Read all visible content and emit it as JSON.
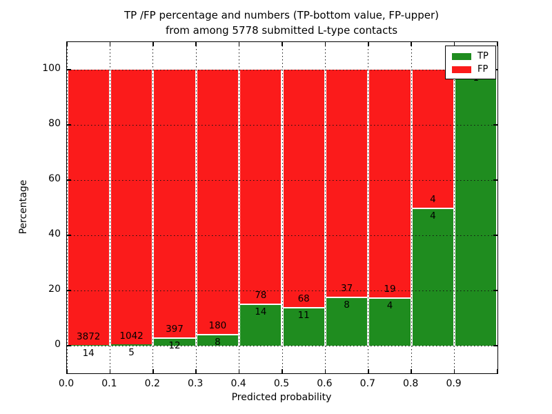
{
  "title": {
    "line1": "TP /FP percentage and numbers (TP-bottom value, FP-upper)",
    "line2": "from among 5778 submitted L-type contacts"
  },
  "axes": {
    "xlabel": "Predicted probability",
    "ylabel": "Percentage"
  },
  "legend": {
    "position": "upper right",
    "items": [
      {
        "label": "TP",
        "color": "#1f8c1f"
      },
      {
        "label": "FP",
        "color": "#fb1b1b"
      }
    ]
  },
  "colors": {
    "tp": "#1f8c1f",
    "fp": "#fb1b1b",
    "grid": "#111111",
    "background": "#ffffff",
    "bar_edge": "#ffffff"
  },
  "chart_data": {
    "type": "bar",
    "stacked": true,
    "normalized": "each bin stacked to 100%",
    "title": "TP /FP percentage and numbers (TP-bottom value, FP-upper) from among 5778 submitted L-type contacts",
    "xlabel": "Predicted probability",
    "ylabel": "Percentage",
    "xlim": [
      0.0,
      1.0
    ],
    "ylim": [
      -10,
      110
    ],
    "x_tick_labels": [
      "0.0",
      "0.1",
      "0.2",
      "0.3",
      "0.4",
      "0.5",
      "0.6",
      "0.7",
      "0.8",
      "0.9"
    ],
    "y_tick_values": [
      0,
      20,
      40,
      60,
      80,
      100
    ],
    "y_tick_labels": [
      "0",
      "20",
      "40",
      "60",
      "80",
      "100"
    ],
    "grid": "dotted, both axes, drawn over bars",
    "legend_entries": [
      "TP",
      "FP"
    ],
    "bins": [
      {
        "range": "0.0-0.1",
        "tp": 14,
        "fp": 3872
      },
      {
        "range": "0.1-0.2",
        "tp": 5,
        "fp": 1042
      },
      {
        "range": "0.2-0.3",
        "tp": 12,
        "fp": 397
      },
      {
        "range": "0.3-0.4",
        "tp": 8,
        "fp": 180
      },
      {
        "range": "0.4-0.5",
        "tp": 14,
        "fp": 78
      },
      {
        "range": "0.5-0.6",
        "tp": 11,
        "fp": 68
      },
      {
        "range": "0.6-0.7",
        "tp": 8,
        "fp": 37
      },
      {
        "range": "0.7-0.8",
        "tp": 4,
        "fp": 19
      },
      {
        "range": "0.8-0.9",
        "tp": 4,
        "fp": 4
      },
      {
        "range": "0.9-1.0",
        "tp": 1,
        "fp": null
      }
    ],
    "tp_percent": [
      0.36,
      0.48,
      2.93,
      4.26,
      15.22,
      13.92,
      17.78,
      17.39,
      50.0,
      100.0
    ]
  }
}
